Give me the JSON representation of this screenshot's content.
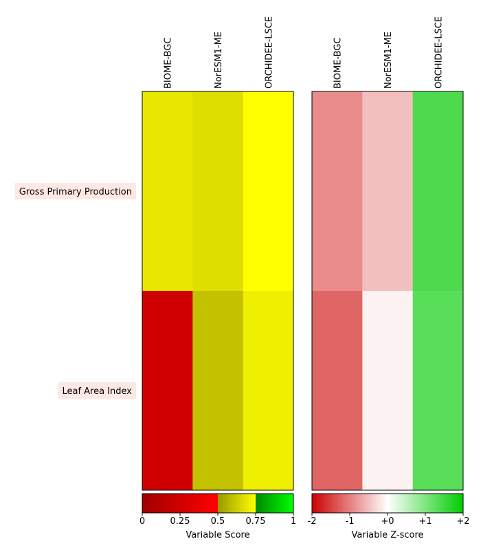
{
  "chart_data": [
    {
      "type": "heatmap",
      "columns": [
        "BIOME-BGC",
        "NorESM1-ME",
        "ORCHIDEE-LSCE"
      ],
      "rows": [
        "Gross Primary Production",
        "Leaf Area Index"
      ],
      "values": [
        [
          0.69,
          0.67,
          0.75
        ],
        [
          0.24,
          0.6,
          0.71
        ]
      ],
      "colorbar": {
        "label": "Variable Score",
        "range": [
          0,
          1
        ],
        "ticks": [
          "0",
          "0.25",
          "0.5",
          "0.75",
          "1"
        ],
        "stops": [
          {
            "at": 0.0,
            "color": "#a00000"
          },
          {
            "at": 0.5,
            "color": "#ff0000"
          },
          {
            "at": 0.5,
            "color": "#999900"
          },
          {
            "at": 0.75,
            "color": "#ffff00"
          },
          {
            "at": 0.75,
            "color": "#008800"
          },
          {
            "at": 1.0,
            "color": "#00ff00"
          }
        ]
      }
    },
    {
      "type": "heatmap",
      "columns": [
        "BIOME-BGC",
        "NorESM1-ME",
        "ORCHIDEE-LSCE"
      ],
      "rows": [
        "Gross Primary Production",
        "Leaf Area Index"
      ],
      "values": [
        [
          -0.9,
          -0.5,
          1.4
        ],
        [
          -1.2,
          -0.1,
          1.3
        ]
      ],
      "colorbar": {
        "label": "Variable Z-score",
        "range": [
          -2,
          2
        ],
        "ticks": [
          "-2",
          "-1",
          "+0",
          "+1",
          "+2"
        ],
        "stops": [
          {
            "at": 0.0,
            "color": "#cc0000"
          },
          {
            "at": 0.5,
            "color": "#ffffff"
          },
          {
            "at": 1.0,
            "color": "#00cc00"
          }
        ]
      }
    }
  ],
  "colors": {
    "row_label_bg": "#fde8e4",
    "frame": "#000000"
  }
}
